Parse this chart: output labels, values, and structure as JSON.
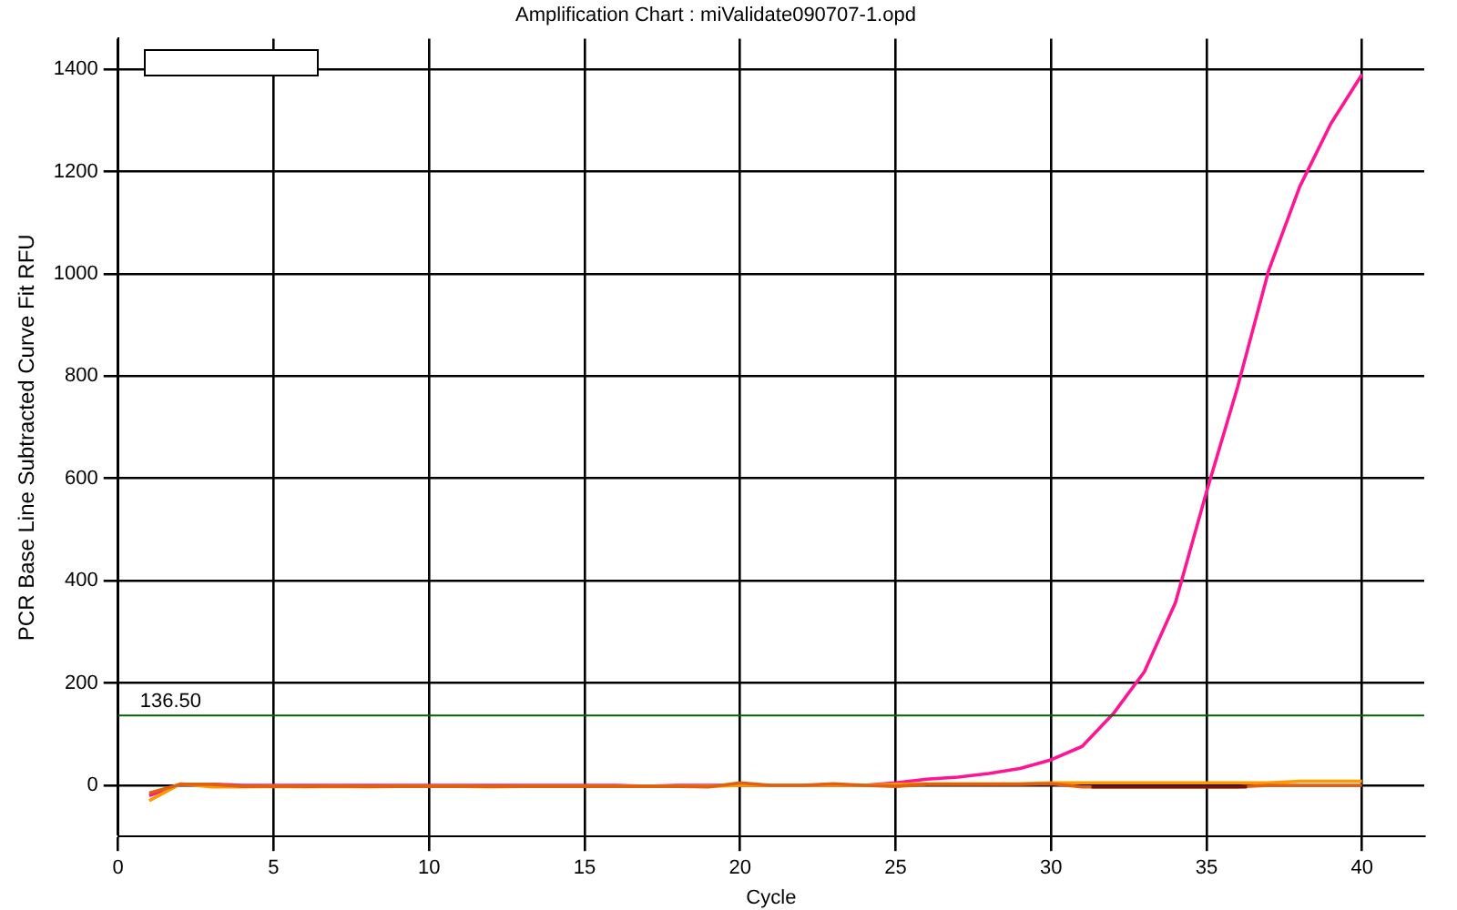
{
  "chart_data": {
    "type": "line",
    "title": "Amplification Chart : miValidate090707-1.opd",
    "xlabel": "Cycle",
    "ylabel": "PCR Base Line Subtracted Curve Fit RFU",
    "x": [
      1,
      2,
      3,
      4,
      5,
      6,
      7,
      8,
      9,
      10,
      11,
      12,
      13,
      14,
      15,
      16,
      17,
      18,
      19,
      20,
      21,
      22,
      23,
      24,
      25,
      26,
      27,
      28,
      29,
      30,
      31,
      32,
      33,
      34,
      35,
      36,
      37,
      38,
      39,
      40
    ],
    "series": [
      {
        "color": "#ff1493",
        "values": [
          -20,
          2,
          2,
          0,
          0,
          0,
          0,
          0,
          0,
          0,
          0,
          0,
          0,
          0,
          0,
          0,
          -2,
          0,
          0,
          0,
          0,
          0,
          0,
          0,
          5,
          12,
          16,
          23,
          33,
          50,
          76,
          140,
          222,
          357,
          574,
          779,
          1007,
          1171,
          1294,
          1390
        ]
      },
      {
        "color": "#ff9900",
        "values": [
          -30,
          3,
          -3,
          -3,
          -2,
          -3,
          -2,
          -3,
          -2,
          -2,
          -2,
          -3,
          -2,
          -2,
          -2,
          -2,
          -2,
          -2,
          -2,
          0,
          0,
          0,
          0,
          0,
          2,
          3,
          3,
          3,
          3,
          5,
          5,
          5,
          5,
          5,
          5,
          5,
          5,
          8,
          8,
          8
        ]
      },
      {
        "color": "#e06010",
        "values": [
          -15,
          2,
          2,
          -2,
          -2,
          -2,
          -2,
          -2,
          -2,
          -2,
          -2,
          -2,
          -2,
          -2,
          -2,
          -2,
          -2,
          -2,
          -3,
          5,
          0,
          0,
          3,
          0,
          -2,
          2,
          2,
          2,
          2,
          3,
          -3,
          -3,
          -3,
          -3,
          -3,
          -3,
          0,
          0,
          0,
          0
        ]
      },
      {
        "color": "#801000",
        "x": [
          31.3,
          36.3
        ],
        "values": [
          -3,
          -3
        ]
      }
    ],
    "xlim": [
      0,
      42
    ],
    "xticks": [
      0,
      5,
      10,
      15,
      20,
      25,
      30,
      35,
      40
    ],
    "ylim": [
      -100,
      1460
    ],
    "yticks": [
      0,
      200,
      400,
      600,
      800,
      1000,
      1200,
      1400
    ],
    "ref_lines": [
      {
        "axis": "y",
        "value": 136.5,
        "label": "136.50",
        "color": "#006400"
      }
    ],
    "grid": true,
    "legend": false,
    "marker": "none",
    "line_style": "solid"
  }
}
